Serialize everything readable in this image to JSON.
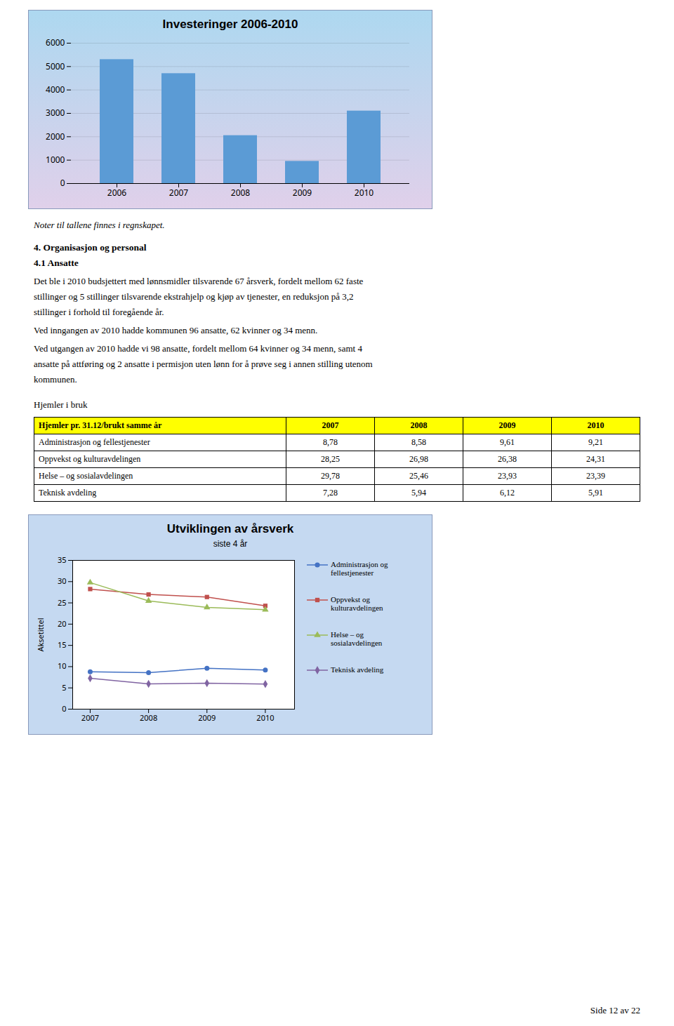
{
  "chart_data": [
    {
      "type": "bar",
      "title": "Investeringer 2006-2010",
      "categories": [
        "2006",
        "2007",
        "2008",
        "2009",
        "2010"
      ],
      "values": [
        5300,
        4700,
        2050,
        950,
        3100
      ],
      "color": "#5B9BD5",
      "ylim": [
        0,
        6000
      ],
      "yticks": [
        0,
        1000,
        2000,
        3000,
        4000,
        5000,
        6000
      ],
      "grid": true
    },
    {
      "type": "line",
      "title": "Utviklingen av årsverk",
      "subtitle": "siste 4 år",
      "x": [
        2007,
        2008,
        2009,
        2010
      ],
      "xlim": [
        2006.7,
        2010.5
      ],
      "xticks": [
        2007,
        2008,
        2009,
        2010
      ],
      "ylim": [
        0,
        35
      ],
      "yticks": [
        0,
        5,
        10,
        15,
        20,
        25,
        30,
        35
      ],
      "ylabel": "Aksetittel",
      "grid": true,
      "legend": "right",
      "series": [
        {
          "name": "Administrasjon og\nfellestjenester",
          "values": [
            8.78,
            8.58,
            9.61,
            9.21
          ],
          "color": "#4472C4",
          "marker": "circle"
        },
        {
          "name": "Oppvekst og\nkulturavdelingen",
          "values": [
            28.25,
            26.98,
            26.38,
            24.31
          ],
          "color": "#C0504D",
          "marker": "square"
        },
        {
          "name": "Helse – og\nsosialavdelingen",
          "values": [
            29.78,
            25.46,
            23.93,
            23.39
          ],
          "color": "#9BBB59",
          "marker": "triangle"
        },
        {
          "name": "Teknisk avdeling",
          "values": [
            7.28,
            5.94,
            6.12,
            5.91
          ],
          "color": "#8064A2",
          "marker": "diamond"
        }
      ]
    }
  ],
  "annotations": [
    "Noter til tallene finnes i regnskapet.",
    "4. Organisasjon og personal",
    "4.1 Ansatte",
    "Det ble i 2010 budsjettert med lønnsmidler tilsvarende 67 årsverk, fordelt mellom 62 faste",
    "stillinger og 5 stillinger tilsvarende ekstrahjelp og kjøp av tjenester, en reduksjon på 3,2",
    "stillinger i forhold til foregående år.",
    "Ved inngangen av 2010 hadde kommunen 96 ansatte, 62 kvinner og 34 menn.",
    "Ved utgangen av 2010 hadde vi 98 ansatte, fordelt mellom 64 kvinner og 34 menn, samt 4",
    "ansatte på attføring og 2 ansatte i permisjon uten lønn for å prøve seg i annen stilling utenom",
    "kommunen.",
    "Side 12 av 22"
  ],
  "table": {
    "title": "Hjemler i bruk",
    "header": [
      "Hjemler pr. 31.12/brukt samme år",
      "2007",
      "2008",
      "2009",
      "2010"
    ],
    "rows": [
      [
        "Administrasjon og fellestjenester",
        "8,78",
        "8,58",
        "9,61",
        "9,21"
      ],
      [
        "Oppvekst og kulturavdelingen",
        "28,25",
        "26,98",
        "26,38",
        "24,31"
      ],
      [
        "Helse – og sosialavdelingen",
        "29,78",
        "25,46",
        "23,93",
        "23,39"
      ],
      [
        "Teknisk avdeling",
        "7,28",
        "5,94",
        "6,12",
        "5,91"
      ]
    ]
  }
}
